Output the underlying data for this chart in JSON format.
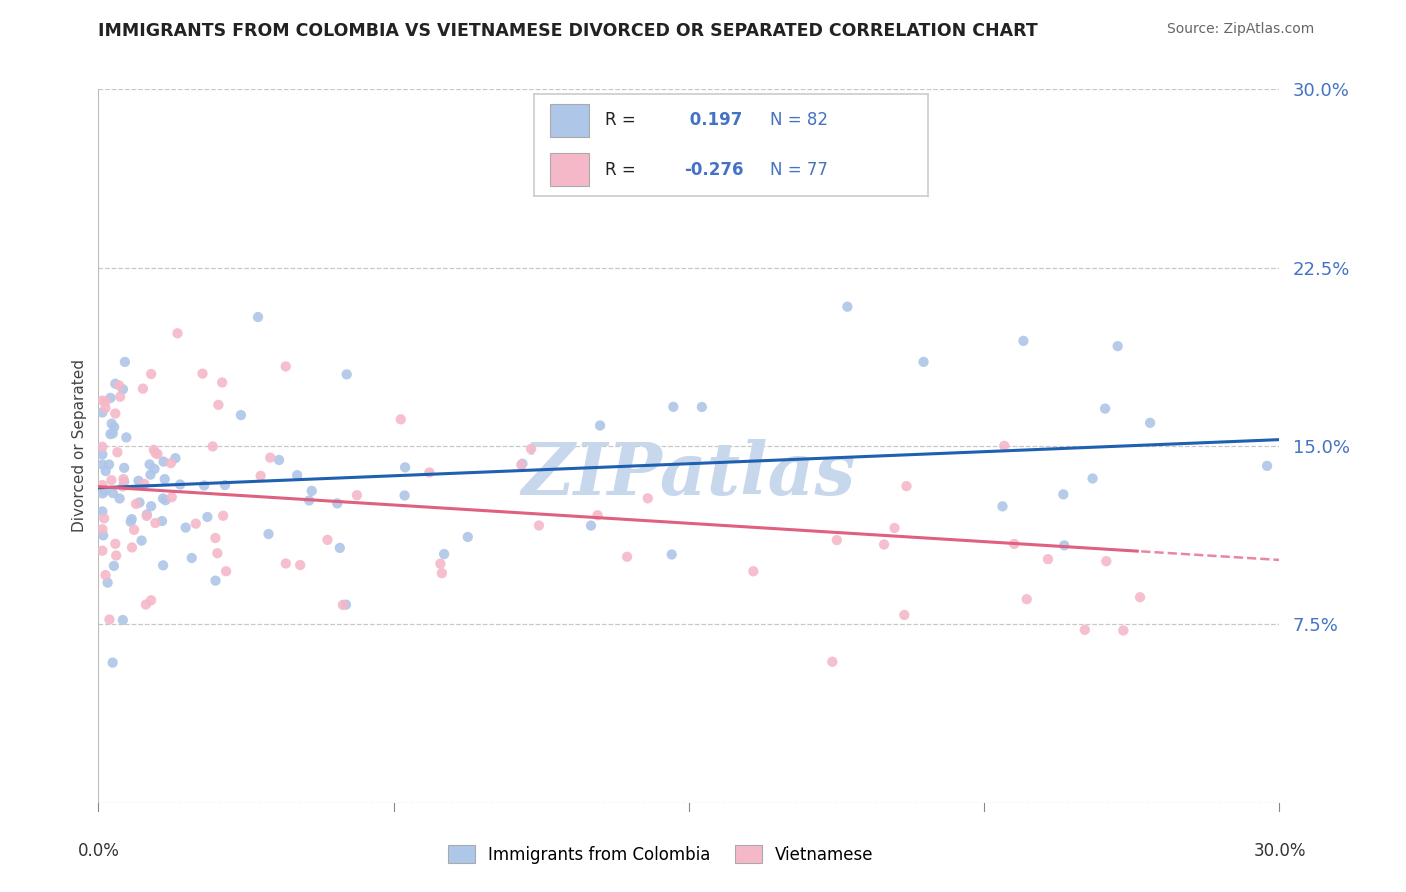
{
  "title": "IMMIGRANTS FROM COLOMBIA VS VIETNAMESE DIVORCED OR SEPARATED CORRELATION CHART",
  "source": "Source: ZipAtlas.com",
  "ylabel": "Divorced or Separated",
  "xlim": [
    0.0,
    0.3
  ],
  "ylim": [
    0.0,
    0.3
  ],
  "yticks": [
    0.0,
    0.075,
    0.15,
    0.225,
    0.3
  ],
  "ytick_labels": [
    "",
    "7.5%",
    "15.0%",
    "22.5%",
    "30.0%"
  ],
  "colombia_R": 0.197,
  "colombia_N": 82,
  "vietnamese_R": -0.276,
  "vietnamese_N": 77,
  "colombia_color": "#aec6e8",
  "vietnamese_color": "#f5b8c8",
  "colombia_line_color": "#2060b0",
  "vietnamese_line_color": "#e06080",
  "watermark": "ZIPatlas",
  "watermark_color": "#c8d8ec",
  "bg_color": "#ffffff",
  "grid_color": "#c8c8c8",
  "title_color": "#222222",
  "source_color": "#666666",
  "tick_color": "#4472c4",
  "legend_border_color": "#cccccc",
  "bottom_legend_labels": [
    "Immigrants from Colombia",
    "Vietnamese"
  ],
  "seed_col": 42,
  "seed_viet": 99
}
